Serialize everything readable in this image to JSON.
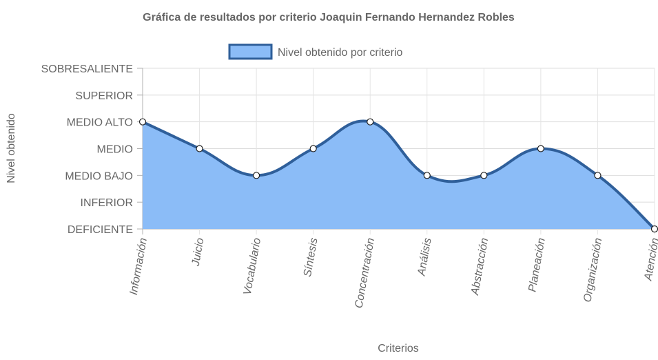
{
  "chart_data": {
    "type": "area",
    "title": "Gráfica de resultados por criterio Joaquin Fernando Hernandez Robles",
    "xlabel": "Criterios",
    "ylabel": "Nivel obtenido",
    "y_levels": [
      "DEFICIENTE",
      "INFERIOR",
      "MEDIO BAJO",
      "MEDIO",
      "MEDIO ALTO",
      "SUPERIOR",
      "SOBRESALIENTE"
    ],
    "ylim": [
      0,
      6
    ],
    "categories": [
      "Información",
      "Juicio",
      "Vocabulario",
      "Síntesis",
      "Concentración",
      "Análisis",
      "Abstracción",
      "Planeación",
      "Organización",
      "Atención"
    ],
    "series": [
      {
        "name": "Nivel obtenido por criterio",
        "values": [
          4,
          3,
          2,
          3,
          4,
          2,
          2,
          3,
          2,
          0
        ]
      }
    ],
    "legend_position": "top",
    "grid": true,
    "colors": {
      "fill": "#8bbcf7",
      "line": "#2f5f9a",
      "point_fill": "#ffffff",
      "grid": "#dddddd",
      "text": "#666666"
    }
  }
}
